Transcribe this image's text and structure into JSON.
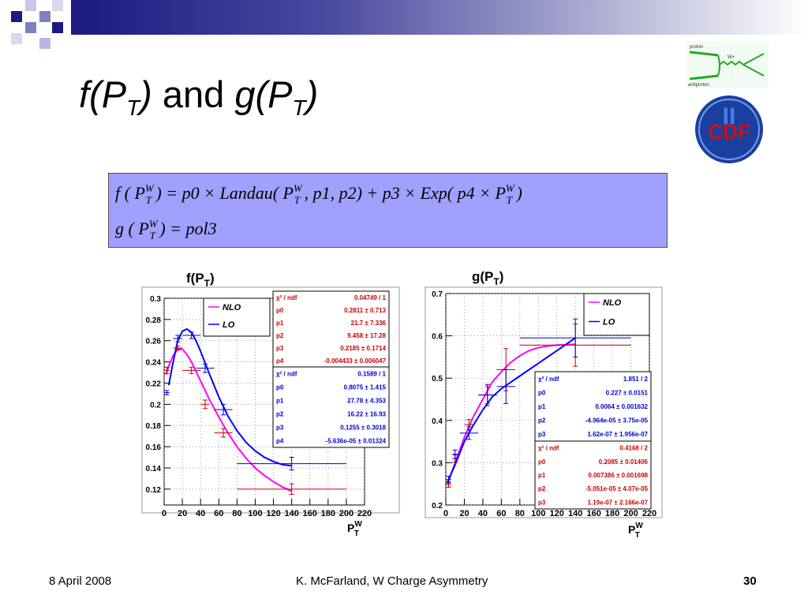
{
  "slide": {
    "title_f": "f(P",
    "title_f_sub": "T",
    "title_f_close": ")",
    "title_and": "and",
    "title_g": "g(P",
    "title_g_sub": "T",
    "title_g_close": ")",
    "formula_line1": "f ( P_T^W ) = p0 × Landau( P_T^W , p1, p2) + p3 × Exp( p4 × P_T^W )",
    "formula_line2": "g ( P_T^W ) = pol3",
    "formula_bg_color": "#a0a0ff",
    "logo_diagram_labels": [
      "proton",
      "antiproton",
      "W+"
    ],
    "logo_text": "CDF",
    "logo_roman": "II"
  },
  "footer": {
    "date": "8 April 2008",
    "author": "K. McFarland, W Charge Asymmetry",
    "page": "30"
  },
  "chart_data": [
    {
      "type": "line",
      "title": "f(P_T)",
      "title_main": "f(P",
      "title_sub": "T",
      "title_close": ")",
      "xlabel": "P_T^W",
      "x_ticks": [
        0,
        20,
        40,
        60,
        80,
        100,
        120,
        140,
        160,
        180,
        200,
        220
      ],
      "y_ticks": [
        0.12,
        0.14,
        0.16,
        0.18,
        0.2,
        0.22,
        0.24,
        0.26,
        0.28,
        0.3
      ],
      "xlim": [
        0,
        220
      ],
      "ylim": [
        0.105,
        0.3
      ],
      "grid": true,
      "legend": {
        "placement": "top-left",
        "entries": [
          {
            "name": "NLO",
            "color": "#ff00ff"
          },
          {
            "name": "LO",
            "color": "#0000ff"
          }
        ]
      },
      "fit_curves": [
        {
          "name": "NLO",
          "color": "#ff00ff",
          "x": [
            2,
            5,
            10,
            15,
            20,
            25,
            30,
            40,
            50,
            60,
            70,
            80,
            90,
            100,
            110,
            120,
            130,
            140
          ],
          "y": [
            0.228,
            0.236,
            0.246,
            0.252,
            0.252,
            0.247,
            0.24,
            0.222,
            0.204,
            0.188,
            0.173,
            0.16,
            0.149,
            0.14,
            0.133,
            0.127,
            0.122,
            0.118
          ]
        },
        {
          "name": "LO",
          "color": "#0000ff",
          "x": [
            5,
            10,
            15,
            20,
            25,
            30,
            35,
            40,
            50,
            60,
            70,
            80,
            90,
            100,
            110,
            120,
            130,
            140
          ],
          "y": [
            0.218,
            0.24,
            0.26,
            0.269,
            0.271,
            0.268,
            0.26,
            0.25,
            0.228,
            0.207,
            0.189,
            0.175,
            0.164,
            0.156,
            0.15,
            0.146,
            0.143,
            0.142
          ]
        }
      ],
      "points": [
        {
          "series": "NLO",
          "color": "#cc0000",
          "x": 3,
          "y": 0.232,
          "xerr": 3,
          "yerr": 0.003
        },
        {
          "series": "NLO",
          "color": "#cc0000",
          "x": 15,
          "y": 0.253,
          "xerr": 5,
          "yerr": 0.002
        },
        {
          "series": "NLO",
          "color": "#cc0000",
          "x": 30,
          "y": 0.232,
          "xerr": 10,
          "yerr": 0.003
        },
        {
          "series": "NLO",
          "color": "#cc0000",
          "x": 45,
          "y": 0.2,
          "xerr": 5,
          "yerr": 0.004
        },
        {
          "series": "NLO",
          "color": "#cc0000",
          "x": 65,
          "y": 0.173,
          "xerr": 10,
          "yerr": 0.004
        },
        {
          "series": "NLO",
          "color": "#cc0000",
          "x": 140,
          "y": 0.12,
          "xerr": 60,
          "yerr": 0.005
        },
        {
          "series": "LO",
          "color": "#0000cc",
          "x": 3,
          "y": 0.211,
          "xerr": 3,
          "yerr": 0.002
        },
        {
          "series": "LO",
          "color": "#0000cc",
          "x": 15,
          "y": 0.262,
          "xerr": 5,
          "yerr": 0.003
        },
        {
          "series": "LO",
          "color": "#0000cc",
          "x": 30,
          "y": 0.265,
          "xerr": 10,
          "yerr": 0.003
        },
        {
          "series": "LO",
          "color": "#0000cc",
          "x": 45,
          "y": 0.234,
          "xerr": 10,
          "yerr": 0.004
        },
        {
          "series": "LO",
          "color": "#0000cc",
          "x": 65,
          "y": 0.195,
          "xerr": 10,
          "yerr": 0.005
        },
        {
          "series": "LO",
          "color": "#0000cc",
          "x": 140,
          "y": 0.144,
          "xerr": 60,
          "yerr": 0.006
        }
      ],
      "stat_boxes": [
        {
          "color": "#cc0000",
          "rows": [
            [
              "χ² / ndf",
              "0.04749 / 1"
            ],
            [
              "p0",
              "0.2811 ± 0.713"
            ],
            [
              "p1",
              "21.7 ± 7.336"
            ],
            [
              "p2",
              "9.458 ± 17.28"
            ],
            [
              "p3",
              "0.2185 ± 0.1714"
            ],
            [
              "p4",
              "-0.004433 ± 0.006047"
            ]
          ]
        },
        {
          "color": "#0000cc",
          "rows": [
            [
              "χ² / ndf",
              "0.1589 / 1"
            ],
            [
              "p0",
              "0.8075 ± 1.415"
            ],
            [
              "p1",
              "27.78 ± 4.353"
            ],
            [
              "p2",
              "16.22 ± 16.93"
            ],
            [
              "p3",
              "0.1255 ± 0.3018"
            ],
            [
              "p4",
              "-5.636e-05 ± 0.01324"
            ]
          ]
        }
      ]
    },
    {
      "type": "line",
      "title": "g(P_T)",
      "title_main": "g(P",
      "title_sub": "T",
      "title_close": ")",
      "xlabel": "P_T^W",
      "x_ticks": [
        0,
        20,
        40,
        60,
        80,
        100,
        120,
        140,
        160,
        180,
        200,
        220
      ],
      "y_ticks": [
        0.2,
        0.3,
        0.4,
        0.5,
        0.6,
        0.7
      ],
      "xlim": [
        0,
        220
      ],
      "ylim": [
        0.2,
        0.7
      ],
      "grid": true,
      "legend": {
        "placement": "top-right",
        "entries": [
          {
            "name": "NLO",
            "color": "#ff00ff"
          },
          {
            "name": "LO",
            "color": "#0000ff"
          }
        ]
      },
      "fit_curves": [
        {
          "name": "NLO",
          "color": "#ff00ff",
          "x": [
            2,
            10,
            20,
            30,
            40,
            50,
            60,
            70,
            80,
            90,
            100,
            110,
            120,
            130,
            140
          ],
          "y": [
            0.25,
            0.3,
            0.36,
            0.41,
            0.45,
            0.49,
            0.515,
            0.537,
            0.553,
            0.565,
            0.572,
            0.576,
            0.578,
            0.579,
            0.58
          ]
        },
        {
          "name": "LO",
          "color": "#0000ff",
          "x": [
            2,
            10,
            20,
            30,
            40,
            50,
            60,
            70,
            80,
            90,
            100,
            110,
            120,
            130,
            140
          ],
          "y": [
            0.255,
            0.295,
            0.35,
            0.39,
            0.425,
            0.455,
            0.475,
            0.49,
            0.505,
            0.52,
            0.535,
            0.55,
            0.565,
            0.58,
            0.595
          ]
        }
      ],
      "points": [
        {
          "series": "NLO",
          "color": "#cc0000",
          "x": 3,
          "y": 0.248,
          "xerr": 3,
          "yerr": 0.006
        },
        {
          "series": "NLO",
          "color": "#cc0000",
          "x": 10,
          "y": 0.31,
          "xerr": 3,
          "yerr": 0.008
        },
        {
          "series": "NLO",
          "color": "#cc0000",
          "x": 25,
          "y": 0.39,
          "xerr": 5,
          "yerr": 0.012
        },
        {
          "series": "NLO",
          "color": "#cc0000",
          "x": 45,
          "y": 0.46,
          "xerr": 10,
          "yerr": 0.02
        },
        {
          "series": "NLO",
          "color": "#cc0000",
          "x": 65,
          "y": 0.52,
          "xerr": 10,
          "yerr": 0.05
        },
        {
          "series": "NLO",
          "color": "#cc0000",
          "x": 140,
          "y": 0.578,
          "xerr": 60,
          "yerr": 0.05
        },
        {
          "series": "LO",
          "color": "#0000cc",
          "x": 3,
          "y": 0.26,
          "xerr": 3,
          "yerr": 0.008
        },
        {
          "series": "LO",
          "color": "#0000cc",
          "x": 10,
          "y": 0.32,
          "xerr": 3,
          "yerr": 0.01
        },
        {
          "series": "LO",
          "color": "#0000cc",
          "x": 25,
          "y": 0.37,
          "xerr": 10,
          "yerr": 0.015
        },
        {
          "series": "LO",
          "color": "#0000cc",
          "x": 45,
          "y": 0.46,
          "xerr": 10,
          "yerr": 0.025
        },
        {
          "series": "LO",
          "color": "#0000cc",
          "x": 65,
          "y": 0.48,
          "xerr": 10,
          "yerr": 0.04
        },
        {
          "series": "LO",
          "color": "#0000cc",
          "x": 140,
          "y": 0.595,
          "xerr": 60,
          "yerr": 0.045
        }
      ],
      "stat_boxes": [
        {
          "color": "#0000cc",
          "rows": [
            [
              "χ² / ndf",
              "1.851 / 2"
            ],
            [
              "p0",
              "0.227 ± 0.0151"
            ],
            [
              "p1",
              "0.0064 ± 0.001632"
            ],
            [
              "p2",
              "-4.964e-05 ± 3.75e-05"
            ],
            [
              "p3",
              "1.62e-07 ± 1.956e-07"
            ]
          ]
        },
        {
          "color": "#cc0000",
          "rows": [
            [
              "χ² / ndf",
              "0.4168 / 2"
            ],
            [
              "p0",
              "0.2085 ± 0.01406"
            ],
            [
              "p1",
              "0.007386 ± 0.001698"
            ],
            [
              "p2",
              "-5.051e-05 ± 4.07e-05"
            ],
            [
              "p3",
              "1.19e-07 ± 2.166e-07"
            ]
          ]
        }
      ]
    }
  ]
}
